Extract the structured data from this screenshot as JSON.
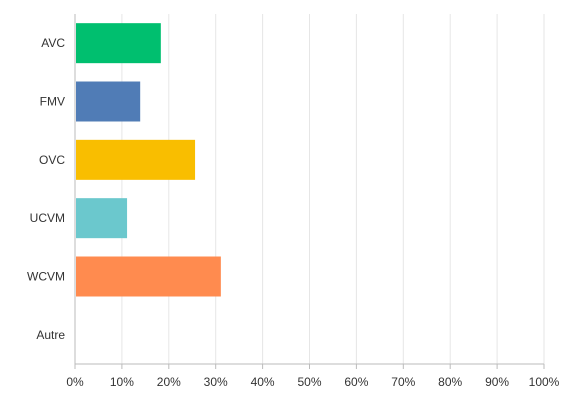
{
  "chart_data": {
    "type": "bar",
    "orientation": "horizontal",
    "categories": [
      "AVC",
      "FMV",
      "OVC",
      "UCVM",
      "WCVM",
      "Autre"
    ],
    "values": [
      18.3,
      13.9,
      25.6,
      11.1,
      31.1,
      0
    ],
    "colors": [
      "#00BF6F",
      "#507CB6",
      "#F9BE00",
      "#6BC8CD",
      "#FF8B4F",
      "#9D9D9D"
    ],
    "xlim": [
      0,
      100
    ],
    "x_ticks": [
      "0%",
      "10%",
      "20%",
      "30%",
      "40%",
      "50%",
      "60%",
      "70%",
      "80%",
      "90%",
      "100%"
    ],
    "grid": true,
    "legend": "none"
  }
}
